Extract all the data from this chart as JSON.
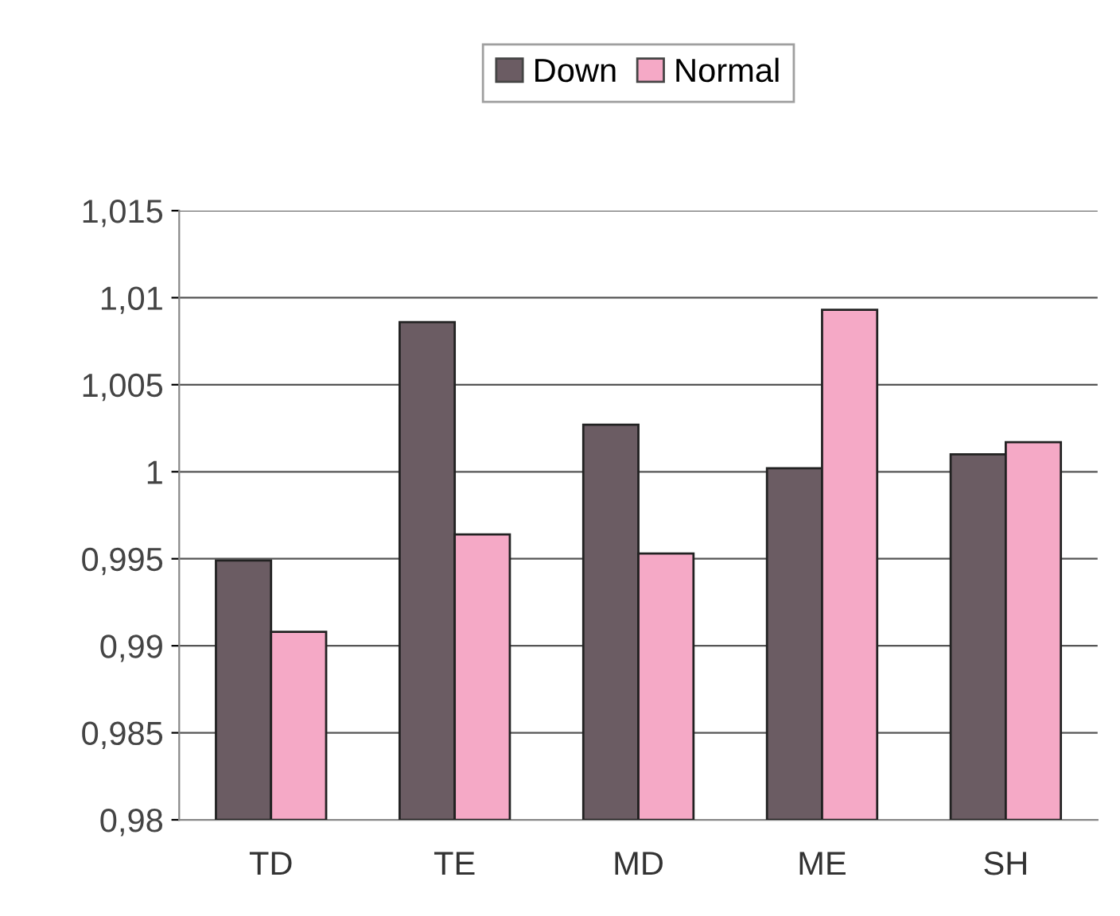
{
  "chart_data": {
    "type": "bar",
    "categories": [
      "TD",
      "TE",
      "MD",
      "ME",
      "SH"
    ],
    "series": [
      {
        "name": "Down",
        "color": "#6b5c63",
        "values": [
          0.9949,
          1.0086,
          1.0027,
          1.0002,
          1.001
        ]
      },
      {
        "name": "Normal",
        "color": "#f5a9c6",
        "values": [
          0.9908,
          0.9964,
          0.9953,
          1.0093,
          1.0017
        ]
      }
    ],
    "ylim": [
      0.98,
      1.015
    ],
    "yticks": [
      {
        "value": 0.98,
        "label": "0,98"
      },
      {
        "value": 0.985,
        "label": "0,985"
      },
      {
        "value": 0.99,
        "label": "0,99"
      },
      {
        "value": 0.995,
        "label": "0,995"
      },
      {
        "value": 1,
        "label": "1"
      },
      {
        "value": 1.005,
        "label": "1,005"
      },
      {
        "value": 1.01,
        "label": "1,01"
      },
      {
        "value": 1.015,
        "label": "1,015"
      }
    ],
    "grid": "y",
    "legend": "top"
  }
}
